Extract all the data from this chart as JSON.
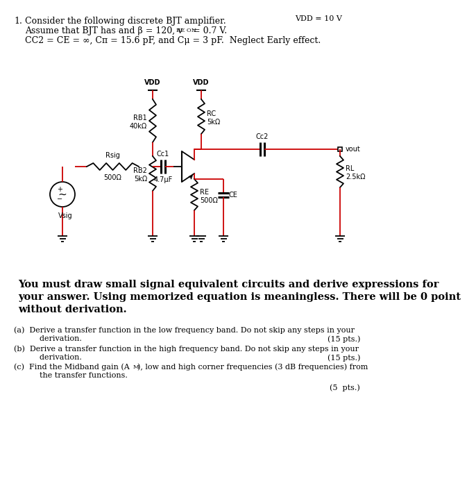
{
  "bg_color": "#ffffff",
  "wire_color": "#cc0000",
  "comp_color": "#000000",
  "text_color": "#000000",
  "vdd_label": "VDD = 10 V",
  "title_num": "1.",
  "title_text": "Consider the following discrete BJT amplifier.",
  "line2a": "Assume that BJT has and β = 120, v",
  "line2sub": "BE ON",
  "line2b": " = 0.7 V.",
  "line3": "CC2 = CE = ∞, Cπ = 15.6 pF, and Cμ = 3 pF.  Neglect Early effect.",
  "large_text_line1": "You must draw small signal equivalent circuits and derive expressions for",
  "large_text_line2": "your answer. Using memorized equation is meaningless. There will be 0 point",
  "large_text_line3": "without derivation.",
  "qa1": "(a)  Derive a transfer function in the low frequency band. Do not skip any steps in your",
  "qa2": "      derivation.",
  "qa_pts": "(15 pts.)",
  "qb1": "(b)  Derive a transfer function in the high frequency band. Do not skip any steps in your",
  "qb2": "      derivation.",
  "qb_pts": "(15 pts.)",
  "qc1": "(c)  Find the Midband gain (A",
  "qc1b": "M",
  "qc1c": "), low and high corner frequencies (3 dB frequencies) from",
  "qc2": "      the transfer functions.",
  "qc_pts": "(5  pts.)"
}
